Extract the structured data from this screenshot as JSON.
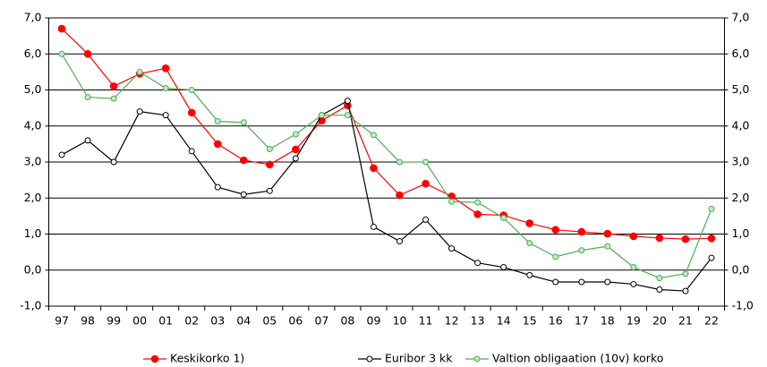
{
  "chart_data": {
    "type": "line",
    "categories": [
      "97",
      "98",
      "99",
      "00",
      "01",
      "02",
      "03",
      "04",
      "05",
      "06",
      "07",
      "08",
      "09",
      "10",
      "11",
      "12",
      "13",
      "14",
      "15",
      "16",
      "17",
      "18",
      "19",
      "20",
      "21",
      "22"
    ],
    "series": [
      {
        "name": "Keskikorko 1)",
        "color": "#ff0000",
        "marker_fill": "#ff0000",
        "values": [
          6.7,
          6.0,
          5.1,
          5.45,
          5.6,
          4.37,
          3.5,
          3.05,
          2.93,
          3.35,
          4.15,
          4.57,
          2.83,
          2.08,
          2.4,
          2.05,
          1.55,
          1.52,
          1.3,
          1.12,
          1.06,
          1.01,
          0.94,
          0.89,
          0.86,
          0.88
        ]
      },
      {
        "name": "Euribor 3 kk",
        "color": "#000000",
        "marker_fill": "#ffffff",
        "values": [
          3.2,
          3.6,
          3.0,
          4.4,
          4.3,
          3.3,
          2.3,
          2.1,
          2.2,
          3.1,
          4.3,
          4.7,
          1.2,
          0.8,
          1.4,
          0.6,
          0.2,
          0.08,
          -0.14,
          -0.33,
          -0.33,
          -0.33,
          -0.39,
          -0.54,
          -0.58,
          0.34
        ]
      },
      {
        "name": "Valtion obligaation (10v) korko",
        "color": "#4caf50",
        "marker_fill": "#c8e6c9",
        "values": [
          6.0,
          4.8,
          4.76,
          5.5,
          5.05,
          5.0,
          4.13,
          4.1,
          3.36,
          3.77,
          4.3,
          4.3,
          3.75,
          3.0,
          3.0,
          1.9,
          1.88,
          1.45,
          0.75,
          0.37,
          0.55,
          0.66,
          0.08,
          -0.22,
          -0.1,
          1.7
        ]
      }
    ],
    "ylim": [
      -1,
      7
    ],
    "yticks": [
      {
        "value": -1,
        "label": "-1,0"
      },
      {
        "value": 0,
        "label": "0,0"
      },
      {
        "value": 1,
        "label": "1,0"
      },
      {
        "value": 2,
        "label": "2,0"
      },
      {
        "value": 3,
        "label": "3,0"
      },
      {
        "value": 4,
        "label": "4,0"
      },
      {
        "value": 5,
        "label": "5,0"
      },
      {
        "value": 6,
        "label": "6,0"
      },
      {
        "value": 7,
        "label": "7,0"
      }
    ],
    "y2lim": [
      -1,
      7
    ],
    "y2ticks": [
      {
        "value": -1,
        "label": "-1,0"
      },
      {
        "value": 0,
        "label": "0,0"
      },
      {
        "value": 1,
        "label": "1,0"
      },
      {
        "value": 2,
        "label": "2,0"
      },
      {
        "value": 3,
        "label": "3,0"
      },
      {
        "value": 4,
        "label": "4,0"
      },
      {
        "value": 5,
        "label": "5,0"
      },
      {
        "value": 6,
        "label": "6,0"
      },
      {
        "value": 7,
        "label": "7,0"
      }
    ],
    "grid": true,
    "legend": "bottom"
  }
}
